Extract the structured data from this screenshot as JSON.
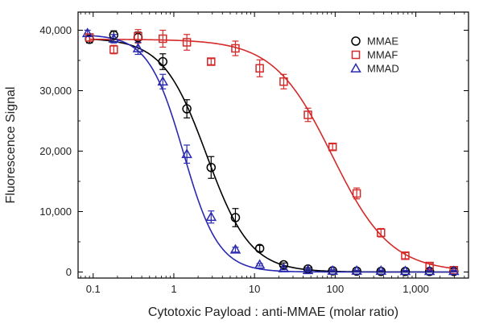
{
  "chart_data": {
    "type": "scatter",
    "title": "",
    "xlabel": "Cytotoxic Payload : anti-MMAE (molar ratio)",
    "ylabel": "Fluorescence Signal",
    "xscale": "log",
    "xlim": [
      0.065,
      4500
    ],
    "ylim": [
      -1000,
      43000
    ],
    "x_ticks": [
      {
        "value": 0.1,
        "label": "0.1"
      },
      {
        "value": 1,
        "label": "1"
      },
      {
        "value": 10,
        "label": "10"
      },
      {
        "value": 100,
        "label": "100"
      },
      {
        "value": 1000,
        "label": "1,000"
      }
    ],
    "y_ticks": [
      {
        "value": 0,
        "label": "0"
      },
      {
        "value": 10000,
        "label": "10,000"
      },
      {
        "value": 20000,
        "label": "20,000"
      },
      {
        "value": 30000,
        "label": "30,000"
      },
      {
        "value": 40000,
        "label": "40,000"
      }
    ],
    "grid": false,
    "legend_position": "top-right",
    "series": [
      {
        "name": "MMAE",
        "marker": "circle",
        "color": "#000000",
        "points": [
          {
            "x": 0.09,
            "y": 38500,
            "err": 600
          },
          {
            "x": 0.18,
            "y": 39200,
            "err": 700
          },
          {
            "x": 0.36,
            "y": 38800,
            "err": 900
          },
          {
            "x": 0.73,
            "y": 34800,
            "err": 1300
          },
          {
            "x": 1.45,
            "y": 27000,
            "err": 1500
          },
          {
            "x": 2.9,
            "y": 17300,
            "err": 1800
          },
          {
            "x": 5.8,
            "y": 9000,
            "err": 1500
          },
          {
            "x": 11.6,
            "y": 3900,
            "err": 500
          },
          {
            "x": 23,
            "y": 1200,
            "err": 300
          },
          {
            "x": 46,
            "y": 500,
            "err": 200
          },
          {
            "x": 93,
            "y": 200,
            "err": 150
          },
          {
            "x": 185,
            "y": 150,
            "err": 100
          },
          {
            "x": 370,
            "y": 100,
            "err": 100
          },
          {
            "x": 740,
            "y": 100,
            "err": 100
          },
          {
            "x": 1480,
            "y": 100,
            "err": 100
          },
          {
            "x": 2960,
            "y": 100,
            "err": 100
          }
        ],
        "curve": {
          "top": 38700,
          "bottom": 0,
          "ec50": 2.55,
          "hill": 1.6
        }
      },
      {
        "name": "MMAF",
        "marker": "square",
        "color": "#d42a2a",
        "points": [
          {
            "x": 0.09,
            "y": 38800,
            "err": 600
          },
          {
            "x": 0.18,
            "y": 36800,
            "err": 700
          },
          {
            "x": 0.36,
            "y": 39000,
            "err": 1100
          },
          {
            "x": 0.73,
            "y": 38600,
            "err": 1400
          },
          {
            "x": 1.45,
            "y": 38000,
            "err": 1300
          },
          {
            "x": 2.9,
            "y": 34800,
            "err": 500
          },
          {
            "x": 5.8,
            "y": 37000,
            "err": 1200
          },
          {
            "x": 11.6,
            "y": 33700,
            "err": 1400
          },
          {
            "x": 23,
            "y": 31500,
            "err": 1200
          },
          {
            "x": 46,
            "y": 26000,
            "err": 1100
          },
          {
            "x": 93,
            "y": 20700,
            "err": 500
          },
          {
            "x": 185,
            "y": 13000,
            "err": 900
          },
          {
            "x": 370,
            "y": 6500,
            "err": 700
          },
          {
            "x": 740,
            "y": 2700,
            "err": 500
          },
          {
            "x": 1480,
            "y": 1000,
            "err": 400
          },
          {
            "x": 2960,
            "y": 300,
            "err": 300
          }
        ],
        "curve": {
          "top": 38500,
          "bottom": 0,
          "ec50": 92,
          "hill": 1.2
        }
      },
      {
        "name": "MMAD",
        "marker": "triangle",
        "color": "#2a2ab0",
        "points": [
          {
            "x": 0.085,
            "y": 39500,
            "err": 500
          },
          {
            "x": 0.18,
            "y": 38600,
            "err": 700
          },
          {
            "x": 0.36,
            "y": 37000,
            "err": 1000
          },
          {
            "x": 0.73,
            "y": 31500,
            "err": 1200
          },
          {
            "x": 1.45,
            "y": 19500,
            "err": 1500
          },
          {
            "x": 2.9,
            "y": 9100,
            "err": 1000
          },
          {
            "x": 5.8,
            "y": 3700,
            "err": 400
          },
          {
            "x": 11.6,
            "y": 1200,
            "err": 200
          },
          {
            "x": 23,
            "y": 600,
            "err": 200
          },
          {
            "x": 46,
            "y": 300,
            "err": 150
          },
          {
            "x": 93,
            "y": 200,
            "err": 100
          },
          {
            "x": 185,
            "y": 200,
            "err": 100
          },
          {
            "x": 370,
            "y": 200,
            "err": 100
          },
          {
            "x": 740,
            "y": 150,
            "err": 100
          },
          {
            "x": 1480,
            "y": 150,
            "err": 100
          },
          {
            "x": 2960,
            "y": 150,
            "err": 100
          }
        ],
        "curve": {
          "top": 39300,
          "bottom": 0,
          "ec50": 1.32,
          "hill": 2.0
        }
      }
    ]
  }
}
